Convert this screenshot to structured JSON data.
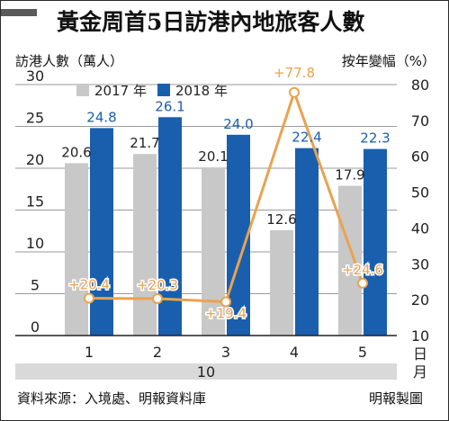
{
  "title": "黃金周首5日訪港內地旅客人數",
  "left_axis_title": "訪港人數（萬人）",
  "right_axis_title": "按年變幅（%）",
  "source": "資料來源：入境處、明報資料庫",
  "credit": "明報製圖",
  "colors": {
    "bar_2017": "#c8c8c8",
    "bar_2018": "#1a5fae",
    "line": "#e8a350",
    "value_2018": "#1a5fae",
    "value_2017": "#222222",
    "pct_label": "#e8a350",
    "month_band": "#d9d9d9"
  },
  "chart_data": {
    "type": "bar",
    "categories": [
      "1",
      "2",
      "3",
      "4",
      "5"
    ],
    "x_unit": "日",
    "x_group_label": "10",
    "x_group_unit": "月",
    "series": [
      {
        "name": "2017 年",
        "values": [
          20.6,
          21.7,
          20.1,
          12.6,
          17.9
        ]
      },
      {
        "name": "2018 年",
        "values": [
          24.8,
          26.1,
          24.0,
          22.4,
          22.3
        ]
      }
    ],
    "line_series": {
      "values": [
        20.4,
        20.3,
        19.4,
        77.8,
        24.6
      ],
      "labels": [
        "+20.4",
        "+20.3",
        "+19.4",
        "+77.8",
        "+24.6"
      ],
      "axis": "right"
    },
    "ylim": [
      0,
      30
    ],
    "yticks": [
      "0",
      "5",
      "10",
      "15",
      "20",
      "25",
      "30"
    ],
    "y2lim": [
      10,
      80
    ],
    "y2ticks": [
      "10",
      "20",
      "30",
      "40",
      "50",
      "60",
      "70",
      "80"
    ],
    "legend_position": "top"
  }
}
